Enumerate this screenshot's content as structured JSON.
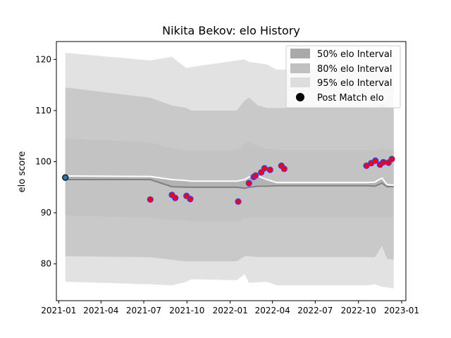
{
  "chart_data": {
    "type": "line",
    "title": "Nikita Bekov: elo History",
    "xlabel": "",
    "ylabel": "elo score",
    "xlim": [
      "2020-12-27",
      "2023-01-10"
    ],
    "ylim": [
      72.8,
      123.5
    ],
    "x_ticks": [
      "2021-01",
      "2021-04",
      "2021-07",
      "2021-10",
      "2022-01",
      "2022-04",
      "2022-07",
      "2022-10",
      "2023-01"
    ],
    "y_ticks": [
      80,
      90,
      100,
      110,
      120
    ],
    "legend_position": "top-right",
    "grid": false,
    "colors": {
      "band_50": "#a9a9a9",
      "band_80": "#c0c0c0",
      "band_95": "#dddddd",
      "mean_line": "#808080",
      "upper_line": "#ffffff",
      "point_fill": "#ff0000",
      "point_edge": "#3a3aff",
      "first_point_fill": "#1f77b4",
      "first_point_edge": "#000000"
    },
    "legend": [
      {
        "label": "50% elo Interval",
        "kind": "band_50"
      },
      {
        "label": "80% elo Interval",
        "kind": "band_80"
      },
      {
        "label": "95% elo Interval",
        "kind": "band_95"
      },
      {
        "label": "Post Match elo",
        "kind": "marker"
      }
    ],
    "bands": {
      "x": [
        "2021-01-15",
        "2021-07-15",
        "2021-08-30",
        "2021-09-30",
        "2021-10-10",
        "2022-01-15",
        "2022-02-01",
        "2022-02-10",
        "2022-03-01",
        "2022-03-20",
        "2022-04-10",
        "2022-10-20",
        "2022-11-05",
        "2022-11-20",
        "2022-12-01",
        "2022-12-15"
      ],
      "mean": [
        96.5,
        96.5,
        95.1,
        95.0,
        95.0,
        95.0,
        94.8,
        95.0,
        95.2,
        95.2,
        95.3,
        95.3,
        95.2,
        95.8,
        95.1,
        95.1
      ],
      "p50_low": [
        96.5,
        96.5,
        95.1,
        95.0,
        95.0,
        95.0,
        94.8,
        95.0,
        95.2,
        95.2,
        95.3,
        95.3,
        95.2,
        95.8,
        95.1,
        95.1
      ],
      "p50_high": [
        97.2,
        97.1,
        96.5,
        96.3,
        96.2,
        96.2,
        96.5,
        97.0,
        97.2,
        96.5,
        95.9,
        95.9,
        96.0,
        96.8,
        95.5,
        95.4
      ],
      "p80_low": [
        89.5,
        89.0,
        88.5,
        88.5,
        88.3,
        88.3,
        89.0,
        89.0,
        89.0,
        89.0,
        89.0,
        89.0,
        89.0,
        89.0,
        89.0,
        89.0
      ],
      "p80_high": [
        104.5,
        103.8,
        102.5,
        102.2,
        102.2,
        102.2,
        103.5,
        104.0,
        103.0,
        102.5,
        102.3,
        102.3,
        102.3,
        102.7,
        102.3,
        102.3
      ],
      "p90_low": [
        81.5,
        81.3,
        80.8,
        80.5,
        80.5,
        80.5,
        81.5,
        81.5,
        81.3,
        81.3,
        81.3,
        81.3,
        81.3,
        83.5,
        81.0,
        80.8
      ],
      "p90_high": [
        114.5,
        112.5,
        111.0,
        110.5,
        110.0,
        110.0,
        112.0,
        112.5,
        111.0,
        110.5,
        110.5,
        110.5,
        110.5,
        111.5,
        110.5,
        110.5
      ],
      "p95_low": [
        76.5,
        76.0,
        75.8,
        76.5,
        77.0,
        76.8,
        78.0,
        76.3,
        76.4,
        76.5,
        75.8,
        75.8,
        76.0,
        75.5,
        75.4,
        75.2
      ],
      "p95_high": [
        121.3,
        119.8,
        120.5,
        118.3,
        118.5,
        119.8,
        120.0,
        119.5,
        119.3,
        119.0,
        118.0,
        118.0,
        117.5,
        118.5,
        117.0,
        117.0
      ]
    },
    "upper_line": {
      "x": [
        "2021-01-15",
        "2021-07-15",
        "2021-08-30",
        "2021-09-30",
        "2021-10-10",
        "2022-01-15",
        "2022-02-01",
        "2022-02-10",
        "2022-03-01",
        "2022-03-20",
        "2022-04-10",
        "2022-10-20",
        "2022-11-05",
        "2022-11-20",
        "2022-12-01",
        "2022-12-15"
      ],
      "y": [
        97.2,
        97.1,
        96.5,
        96.3,
        96.2,
        96.2,
        96.5,
        97.0,
        97.2,
        96.5,
        95.9,
        95.9,
        96.0,
        96.8,
        95.5,
        95.4
      ]
    },
    "points": [
      {
        "date": "2021-01-15",
        "elo": 96.9
      },
      {
        "date": "2021-07-15",
        "elo": 92.6
      },
      {
        "date": "2021-08-30",
        "elo": 93.5
      },
      {
        "date": "2021-09-06",
        "elo": 92.9
      },
      {
        "date": "2021-09-30",
        "elo": 93.3
      },
      {
        "date": "2021-10-08",
        "elo": 92.7
      },
      {
        "date": "2022-01-18",
        "elo": 92.2
      },
      {
        "date": "2022-02-10",
        "elo": 95.8
      },
      {
        "date": "2022-02-20",
        "elo": 97.0
      },
      {
        "date": "2022-02-24",
        "elo": 97.3
      },
      {
        "date": "2022-03-08",
        "elo": 97.9
      },
      {
        "date": "2022-03-15",
        "elo": 98.7
      },
      {
        "date": "2022-03-27",
        "elo": 98.4
      },
      {
        "date": "2022-04-20",
        "elo": 99.2
      },
      {
        "date": "2022-04-26",
        "elo": 98.6
      },
      {
        "date": "2022-10-18",
        "elo": 99.2
      },
      {
        "date": "2022-10-28",
        "elo": 99.7
      },
      {
        "date": "2022-11-06",
        "elo": 100.2
      },
      {
        "date": "2022-11-16",
        "elo": 99.4
      },
      {
        "date": "2022-11-23",
        "elo": 99.9
      },
      {
        "date": "2022-12-04",
        "elo": 99.8
      },
      {
        "date": "2022-12-11",
        "elo": 100.5
      }
    ]
  }
}
